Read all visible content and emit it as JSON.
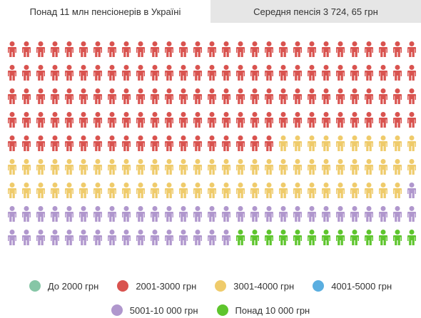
{
  "tabs": [
    "Понад 11 млн пенсіонерів в Україні",
    "Середня пенсія 3 724, 65 грн"
  ],
  "chart_data": {
    "type": "pictogram",
    "series": [
      {
        "name": "До 2000 грн",
        "color": "#86c6a6",
        "values": [
          0
        ]
      },
      {
        "name": "2001-3000 грн",
        "color": "#d9534f",
        "values": [
          135
        ]
      },
      {
        "name": "3001-4000 грн",
        "color": "#efcb6b",
        "values": [
          67
        ]
      },
      {
        "name": "4001-5000 грн",
        "color": "#5aaee0",
        "values": [
          0
        ]
      },
      {
        "name": "5001-10 000 грн",
        "color": "#b097cd",
        "values": [
          46
        ]
      },
      {
        "name": "Понад 10 000 грн",
        "color": "#5ec52d",
        "values": [
          13
        ]
      }
    ]
  }
}
